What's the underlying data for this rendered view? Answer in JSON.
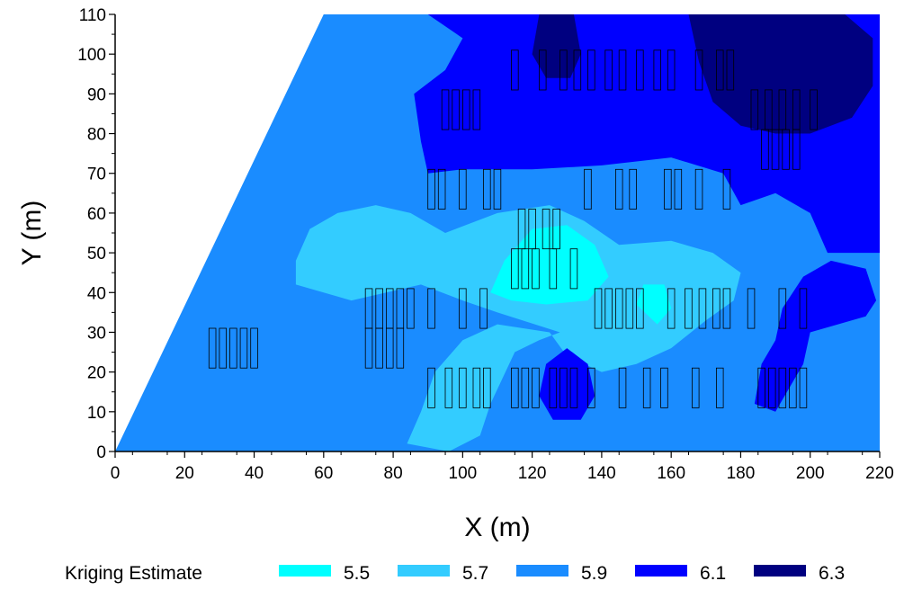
{
  "chart_data": {
    "type": "heatmap",
    "title": "",
    "xlabel": "X (m)",
    "ylabel": "Y (m)",
    "xlim": [
      0,
      220
    ],
    "ylim": [
      0,
      110
    ],
    "x_ticks": [
      "0",
      "20",
      "40",
      "60",
      "80",
      "100",
      "120",
      "140",
      "160",
      "180",
      "200",
      "220"
    ],
    "y_ticks": [
      "0",
      "10",
      "20",
      "30",
      "40",
      "50",
      "60",
      "70",
      "80",
      "90",
      "100",
      "110"
    ],
    "grid": false,
    "legend_position": "bottom",
    "legend": {
      "title": "Kriging Estimate",
      "entries": [
        {
          "label": "5.5",
          "color": "#00ffff"
        },
        {
          "label": "5.7",
          "color": "#33ccff"
        },
        {
          "label": "5.9",
          "color": "#1a8cff"
        },
        {
          "label": "6.1",
          "color": "#0000ff"
        },
        {
          "label": "6.3",
          "color": "#000080"
        }
      ]
    },
    "colors": {
      "c55": "#00ffff",
      "c57": "#33ccff",
      "c59": "#1a8cff",
      "c61": "#0000ff",
      "c63": "#000080"
    },
    "unsampled_region": [
      [
        0,
        0
      ],
      [
        0,
        0
      ],
      [
        60,
        110
      ],
      [
        0,
        110
      ]
    ],
    "zones": [
      {
        "level": "6.1",
        "polygon": [
          [
            90,
            110
          ],
          [
            220,
            110
          ],
          [
            220,
            50
          ],
          [
            205,
            50
          ],
          [
            200,
            60
          ],
          [
            190,
            65
          ],
          [
            180,
            62
          ],
          [
            175,
            70
          ],
          [
            160,
            74
          ],
          [
            140,
            72
          ],
          [
            120,
            71
          ],
          [
            100,
            71
          ],
          [
            90,
            70
          ],
          [
            88,
            78
          ],
          [
            86,
            90
          ],
          [
            95,
            96
          ],
          [
            100,
            104
          ]
        ]
      },
      {
        "level": "6.3",
        "polygon": [
          [
            165,
            110
          ],
          [
            210,
            110
          ],
          [
            218,
            104
          ],
          [
            218,
            92
          ],
          [
            212,
            84
          ],
          [
            200,
            80
          ],
          [
            190,
            80
          ],
          [
            180,
            82
          ],
          [
            172,
            88
          ],
          [
            168,
            98
          ]
        ]
      },
      {
        "level": "6.3",
        "polygon": [
          [
            122,
            110
          ],
          [
            132,
            110
          ],
          [
            134,
            100
          ],
          [
            131,
            94
          ],
          [
            124,
            94
          ],
          [
            120,
            100
          ]
        ]
      },
      {
        "level": "5.7",
        "polygon": [
          [
            52,
            48
          ],
          [
            56,
            56
          ],
          [
            64,
            60
          ],
          [
            75,
            62
          ],
          [
            85,
            60
          ],
          [
            95,
            55
          ],
          [
            110,
            60
          ],
          [
            125,
            62
          ],
          [
            135,
            58
          ],
          [
            145,
            52
          ],
          [
            160,
            53
          ],
          [
            172,
            50
          ],
          [
            180,
            45
          ],
          [
            178,
            38
          ],
          [
            170,
            33
          ],
          [
            160,
            26
          ],
          [
            150,
            22
          ],
          [
            140,
            20
          ],
          [
            130,
            24
          ],
          [
            125,
            30
          ],
          [
            110,
            32
          ],
          [
            100,
            28
          ],
          [
            92,
            20
          ],
          [
            88,
            10
          ],
          [
            84,
            2
          ],
          [
            96,
            0
          ],
          [
            105,
            4
          ],
          [
            108,
            12
          ],
          [
            115,
            25
          ],
          [
            122,
            28
          ],
          [
            128,
            30
          ],
          [
            110,
            35
          ],
          [
            100,
            38
          ],
          [
            88,
            42
          ],
          [
            78,
            40
          ],
          [
            68,
            38
          ],
          [
            60,
            40
          ],
          [
            52,
            42
          ]
        ]
      },
      {
        "level": "5.5",
        "polygon": [
          [
            108,
            40
          ],
          [
            112,
            48
          ],
          [
            120,
            56
          ],
          [
            130,
            57
          ],
          [
            138,
            52
          ],
          [
            142,
            44
          ],
          [
            136,
            38
          ],
          [
            124,
            37
          ],
          [
            114,
            38
          ]
        ]
      },
      {
        "level": "5.5",
        "polygon": [
          [
            150,
            37
          ],
          [
            152,
            42
          ],
          [
            158,
            42
          ],
          [
            160,
            36
          ],
          [
            156,
            32
          ]
        ]
      },
      {
        "level": "6.1",
        "polygon": [
          [
            122,
            14
          ],
          [
            124,
            22
          ],
          [
            130,
            26
          ],
          [
            136,
            22
          ],
          [
            138,
            14
          ],
          [
            134,
            8
          ],
          [
            126,
            8
          ]
        ]
      },
      {
        "level": "6.1",
        "polygon": [
          [
            184,
            12
          ],
          [
            186,
            22
          ],
          [
            190,
            28
          ],
          [
            192,
            36
          ],
          [
            198,
            44
          ],
          [
            206,
            48
          ],
          [
            216,
            46
          ],
          [
            219,
            38
          ],
          [
            216,
            34
          ],
          [
            208,
            32
          ],
          [
            200,
            30
          ],
          [
            198,
            22
          ],
          [
            194,
            16
          ],
          [
            190,
            10
          ]
        ]
      }
    ],
    "sample_blocks": [
      {
        "x": 27,
        "y": 21,
        "w": 2,
        "h": 10
      },
      {
        "x": 30,
        "y": 21,
        "w": 2,
        "h": 10
      },
      {
        "x": 33,
        "y": 21,
        "w": 2,
        "h": 10
      },
      {
        "x": 36,
        "y": 21,
        "w": 2,
        "h": 10
      },
      {
        "x": 39,
        "y": 21,
        "w": 2,
        "h": 10
      },
      {
        "x": 72,
        "y": 21,
        "w": 2,
        "h": 10
      },
      {
        "x": 75,
        "y": 21,
        "w": 2,
        "h": 10
      },
      {
        "x": 78,
        "y": 21,
        "w": 2,
        "h": 10
      },
      {
        "x": 81,
        "y": 21,
        "w": 2,
        "h": 10
      },
      {
        "x": 72,
        "y": 31,
        "w": 2,
        "h": 10
      },
      {
        "x": 75,
        "y": 31,
        "w": 2,
        "h": 10
      },
      {
        "x": 78,
        "y": 31,
        "w": 2,
        "h": 10
      },
      {
        "x": 81,
        "y": 31,
        "w": 2,
        "h": 10
      },
      {
        "x": 84,
        "y": 31,
        "w": 2,
        "h": 10
      },
      {
        "x": 90,
        "y": 31,
        "w": 2,
        "h": 10
      },
      {
        "x": 99,
        "y": 31,
        "w": 2,
        "h": 10
      },
      {
        "x": 105,
        "y": 31,
        "w": 2,
        "h": 10
      },
      {
        "x": 90,
        "y": 11,
        "w": 2,
        "h": 10
      },
      {
        "x": 95,
        "y": 11,
        "w": 2,
        "h": 10
      },
      {
        "x": 99,
        "y": 11,
        "w": 2,
        "h": 10
      },
      {
        "x": 103,
        "y": 11,
        "w": 2,
        "h": 10
      },
      {
        "x": 106,
        "y": 11,
        "w": 2,
        "h": 10
      },
      {
        "x": 114,
        "y": 11,
        "w": 2,
        "h": 10
      },
      {
        "x": 117,
        "y": 11,
        "w": 2,
        "h": 10
      },
      {
        "x": 120,
        "y": 11,
        "w": 2,
        "h": 10
      },
      {
        "x": 125,
        "y": 11,
        "w": 2,
        "h": 10
      },
      {
        "x": 128,
        "y": 11,
        "w": 2,
        "h": 10
      },
      {
        "x": 131,
        "y": 11,
        "w": 2,
        "h": 10
      },
      {
        "x": 136,
        "y": 11,
        "w": 2,
        "h": 10
      },
      {
        "x": 145,
        "y": 11,
        "w": 2,
        "h": 10
      },
      {
        "x": 152,
        "y": 11,
        "w": 2,
        "h": 10
      },
      {
        "x": 157,
        "y": 11,
        "w": 2,
        "h": 10
      },
      {
        "x": 166,
        "y": 11,
        "w": 2,
        "h": 10
      },
      {
        "x": 173,
        "y": 11,
        "w": 2,
        "h": 10
      },
      {
        "x": 185,
        "y": 11,
        "w": 2,
        "h": 10
      },
      {
        "x": 188,
        "y": 11,
        "w": 2,
        "h": 10
      },
      {
        "x": 191,
        "y": 11,
        "w": 2,
        "h": 10
      },
      {
        "x": 194,
        "y": 11,
        "w": 2,
        "h": 10
      },
      {
        "x": 197,
        "y": 11,
        "w": 2,
        "h": 10
      },
      {
        "x": 138,
        "y": 31,
        "w": 2,
        "h": 10
      },
      {
        "x": 141,
        "y": 31,
        "w": 2,
        "h": 10
      },
      {
        "x": 144,
        "y": 31,
        "w": 2,
        "h": 10
      },
      {
        "x": 147,
        "y": 31,
        "w": 2,
        "h": 10
      },
      {
        "x": 150,
        "y": 31,
        "w": 2,
        "h": 10
      },
      {
        "x": 159,
        "y": 31,
        "w": 2,
        "h": 10
      },
      {
        "x": 164,
        "y": 31,
        "w": 2,
        "h": 10
      },
      {
        "x": 168,
        "y": 31,
        "w": 2,
        "h": 10
      },
      {
        "x": 172,
        "y": 31,
        "w": 2,
        "h": 10
      },
      {
        "x": 175,
        "y": 31,
        "w": 2,
        "h": 10
      },
      {
        "x": 182,
        "y": 31,
        "w": 2,
        "h": 10
      },
      {
        "x": 191,
        "y": 31,
        "w": 2,
        "h": 10
      },
      {
        "x": 197,
        "y": 31,
        "w": 2,
        "h": 10
      },
      {
        "x": 114,
        "y": 41,
        "w": 2,
        "h": 10
      },
      {
        "x": 117,
        "y": 41,
        "w": 2,
        "h": 10
      },
      {
        "x": 120,
        "y": 41,
        "w": 2,
        "h": 10
      },
      {
        "x": 125,
        "y": 41,
        "w": 2,
        "h": 10
      },
      {
        "x": 131,
        "y": 41,
        "w": 2,
        "h": 10
      },
      {
        "x": 116,
        "y": 51,
        "w": 2,
        "h": 10
      },
      {
        "x": 119,
        "y": 51,
        "w": 2,
        "h": 10
      },
      {
        "x": 123,
        "y": 51,
        "w": 2,
        "h": 10
      },
      {
        "x": 126,
        "y": 51,
        "w": 2,
        "h": 10
      },
      {
        "x": 90,
        "y": 61,
        "w": 2,
        "h": 10
      },
      {
        "x": 93,
        "y": 61,
        "w": 2,
        "h": 10
      },
      {
        "x": 99,
        "y": 61,
        "w": 2,
        "h": 10
      },
      {
        "x": 106,
        "y": 61,
        "w": 2,
        "h": 10
      },
      {
        "x": 109,
        "y": 61,
        "w": 2,
        "h": 10
      },
      {
        "x": 135,
        "y": 61,
        "w": 2,
        "h": 10
      },
      {
        "x": 144,
        "y": 61,
        "w": 2,
        "h": 10
      },
      {
        "x": 148,
        "y": 61,
        "w": 2,
        "h": 10
      },
      {
        "x": 158,
        "y": 61,
        "w": 2,
        "h": 10
      },
      {
        "x": 161,
        "y": 61,
        "w": 2,
        "h": 10
      },
      {
        "x": 167,
        "y": 61,
        "w": 2,
        "h": 10
      },
      {
        "x": 175,
        "y": 61,
        "w": 2,
        "h": 10
      },
      {
        "x": 186,
        "y": 71,
        "w": 2,
        "h": 10
      },
      {
        "x": 189,
        "y": 71,
        "w": 2,
        "h": 10
      },
      {
        "x": 192,
        "y": 71,
        "w": 2,
        "h": 10
      },
      {
        "x": 195,
        "y": 71,
        "w": 2,
        "h": 10
      },
      {
        "x": 94,
        "y": 81,
        "w": 2,
        "h": 10
      },
      {
        "x": 97,
        "y": 81,
        "w": 2,
        "h": 10
      },
      {
        "x": 100,
        "y": 81,
        "w": 2,
        "h": 10
      },
      {
        "x": 103,
        "y": 81,
        "w": 2,
        "h": 10
      },
      {
        "x": 183,
        "y": 81,
        "w": 2,
        "h": 10
      },
      {
        "x": 187,
        "y": 81,
        "w": 2,
        "h": 10
      },
      {
        "x": 191,
        "y": 81,
        "w": 2,
        "h": 10
      },
      {
        "x": 195,
        "y": 81,
        "w": 2,
        "h": 10
      },
      {
        "x": 200,
        "y": 81,
        "w": 2,
        "h": 10
      },
      {
        "x": 114,
        "y": 91,
        "w": 2,
        "h": 10
      },
      {
        "x": 122,
        "y": 91,
        "w": 2,
        "h": 10
      },
      {
        "x": 128,
        "y": 91,
        "w": 2,
        "h": 10
      },
      {
        "x": 132,
        "y": 91,
        "w": 2,
        "h": 10
      },
      {
        "x": 136,
        "y": 91,
        "w": 2,
        "h": 10
      },
      {
        "x": 141,
        "y": 91,
        "w": 2,
        "h": 10
      },
      {
        "x": 145,
        "y": 91,
        "w": 2,
        "h": 10
      },
      {
        "x": 150,
        "y": 91,
        "w": 2,
        "h": 10
      },
      {
        "x": 155,
        "y": 91,
        "w": 2,
        "h": 10
      },
      {
        "x": 159,
        "y": 91,
        "w": 2,
        "h": 10
      },
      {
        "x": 167,
        "y": 91,
        "w": 2,
        "h": 10
      },
      {
        "x": 173,
        "y": 91,
        "w": 2,
        "h": 10
      },
      {
        "x": 176,
        "y": 91,
        "w": 2,
        "h": 10
      }
    ]
  }
}
